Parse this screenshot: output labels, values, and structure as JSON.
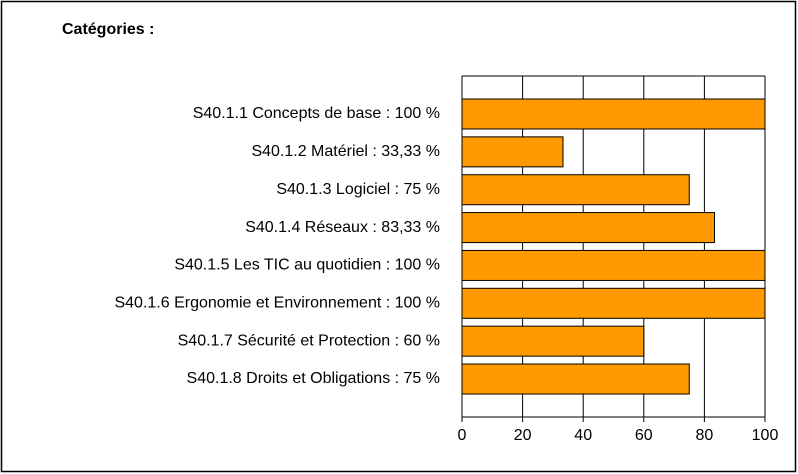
{
  "chart_data": {
    "type": "barh",
    "title": "Catégories :",
    "categories": [
      "S40.1.1 Concepts de base : 100 %",
      "S40.1.2 Matériel : 33,33 %",
      "S40.1.3 Logiciel : 75 %",
      "S40.1.4 Réseaux : 83,33 %",
      "S40.1.5 Les TIC au quotidien : 100 %",
      "S40.1.6 Ergonomie et Environnement : 100 %",
      "S40.1.7 Sécurité et Protection : 60 %",
      "S40.1.8 Droits et Obligations : 75 %"
    ],
    "values": [
      100,
      33.33,
      75,
      83.33,
      100,
      100,
      60,
      75
    ],
    "color": "#ff9900",
    "xlim": [
      0,
      100
    ],
    "xticks": [
      0,
      20,
      40,
      60,
      80,
      100
    ],
    "grid": true
  }
}
